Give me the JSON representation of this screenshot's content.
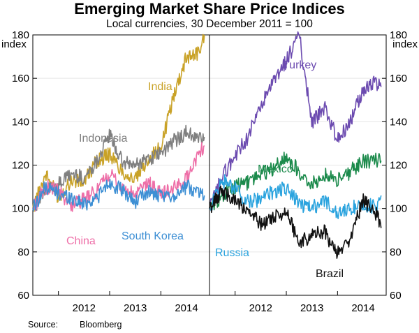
{
  "chart_data": {
    "type": "line",
    "title": "Emerging Market Share Price Indices",
    "subtitle": "Local currencies, 30 December 2011 = 100",
    "ylabel": "index",
    "ylim": [
      60,
      180
    ],
    "yticks": [
      60,
      80,
      100,
      120,
      140,
      160,
      180
    ],
    "xlim": [
      2011.5,
      2014.95
    ],
    "xtick_labels": [
      "2012",
      "2013",
      "2014"
    ],
    "x": [
      2011.5,
      2011.75,
      2012.0,
      2012.25,
      2012.5,
      2012.75,
      2013.0,
      2013.25,
      2013.5,
      2013.75,
      2014.0,
      2014.25,
      2014.5,
      2014.75,
      2014.85
    ],
    "panels": [
      {
        "name": "left",
        "series": [
          {
            "name": "India",
            "color": "#c9a227",
            "values": [
              100,
              116,
              105,
              113,
              112,
              122,
              125,
              117,
              113,
              123,
              128,
              152,
              170,
              172,
              180
            ]
          },
          {
            "name": "Indonesia",
            "color": "#7f7f7f",
            "values": [
              100,
              108,
              111,
              116,
              114,
              122,
              134,
              121,
              120,
              123,
              125,
              131,
              135,
              132,
              133
            ]
          },
          {
            "name": "China",
            "color": "#ee6fa8",
            "values": [
              100,
              110,
              108,
              102,
              104,
              108,
              116,
              109,
              106,
              112,
              107,
              109,
              114,
              126,
              129
            ]
          },
          {
            "name": "South Korea",
            "color": "#3d8fd4",
            "values": [
              100,
              110,
              107,
              105,
              102,
              105,
              112,
              108,
              103,
              108,
              105,
              106,
              110,
              108,
              106
            ]
          }
        ]
      },
      {
        "name": "right",
        "series": [
          {
            "name": "Turkey",
            "color": "#6c4bb0",
            "values": [
              100,
              115,
              124,
              133,
              147,
              158,
              168,
              180,
              140,
              146,
              132,
              140,
              155,
              158,
              156
            ]
          },
          {
            "name": "Mexico",
            "color": "#1b8a4b",
            "values": [
              100,
              106,
              110,
              112,
              116,
              118,
              124,
              117,
              111,
              116,
              113,
              117,
              122,
              122,
              122
            ]
          },
          {
            "name": "Russia",
            "color": "#2aa3de",
            "values": [
              100,
              113,
              109,
              103,
              104,
              108,
              109,
              102,
              100,
              104,
              97,
              100,
              102,
              101,
              106
            ]
          },
          {
            "name": "Brazil",
            "color": "#111111",
            "values": [
              100,
              108,
              104,
              98,
              93,
              96,
              99,
              84,
              88,
              89,
              79,
              86,
              104,
              98,
              91
            ]
          }
        ]
      }
    ]
  },
  "source": {
    "label": "Source:",
    "value": "Bloomberg"
  }
}
